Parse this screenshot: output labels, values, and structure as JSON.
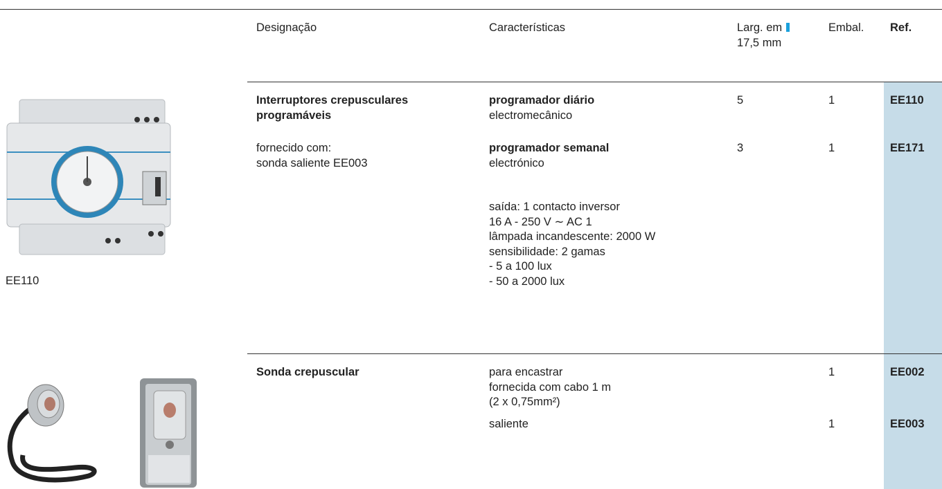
{
  "header": {
    "columns": {
      "designation": "Designação",
      "features": "Características",
      "width_line1": "Larg. em",
      "width_line2": "17,5 mm",
      "pack": "Embal.",
      "ref": "Ref."
    }
  },
  "sections": [
    {
      "title": "Interruptores crepusculares programáveis",
      "notes": [
        "fornecido com:",
        "sonda saliente EE003"
      ],
      "image_caption": "EE110",
      "rows": [
        {
          "feature_title": "programador diário",
          "feature_sub": "electromecânico",
          "width": "5",
          "pack": "1",
          "ref": "EE110"
        },
        {
          "feature_title": "programador semanal",
          "feature_sub": "electrónico",
          "width": "3",
          "pack": "1",
          "ref": "EE171"
        }
      ],
      "specs": [
        "saída: 1 contacto inversor",
        "16 A - 250 V ∼ AC 1",
        "lâmpada incandescente: 2000 W",
        "sensibilidade: 2 gamas",
        "- 5 a 100 lux",
        "- 50 a 2000 lux"
      ]
    },
    {
      "title": "Sonda crepuscular",
      "rows": [
        {
          "feature_lines": [
            "para encastrar",
            "fornecida com cabo 1 m",
            "(2 x 0,75mm²)"
          ],
          "pack": "1",
          "ref": "EE002"
        },
        {
          "feature_lines": [
            "saliente"
          ],
          "pack": "1",
          "ref": "EE003"
        }
      ]
    }
  ]
}
